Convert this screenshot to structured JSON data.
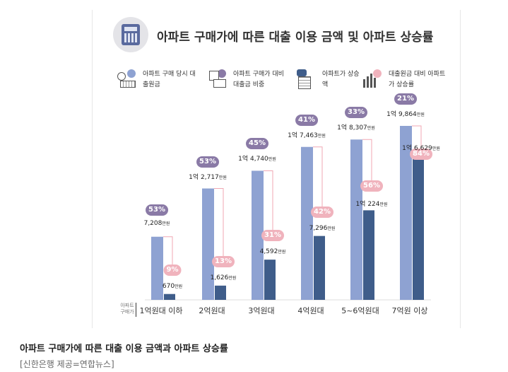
{
  "chart_data": {
    "type": "bar",
    "title": "아파트 구매가에 따른 대출 이용 금액 및 아파트 상승률",
    "axis_title": "아파트 구매가",
    "legend": [
      "아파트 구매 당시 대출원금",
      "아파트 구매가 대비 대출금 비중",
      "아파트가 상승액",
      "대출원금 대비 아파트가 상승률"
    ],
    "categories": [
      "1억원대 이하",
      "2억원대",
      "3억원대",
      "4억원대",
      "5~6억원대",
      "7억원 이상"
    ],
    "series": [
      {
        "name": "아파트 구매 당시 대출원금",
        "values": [
          7208,
          12717,
          14740,
          17463,
          18307,
          19864
        ],
        "labels": [
          "7,208",
          "1억 2,717",
          "1억 4,740",
          "1억 7,463",
          "1억 8,307",
          "1억 9,864"
        ],
        "pct": [
          "53%",
          "53%",
          "45%",
          "41%",
          "33%",
          "21%"
        ]
      },
      {
        "name": "아파트가 상승액",
        "values": [
          670,
          1626,
          4592,
          7296,
          10224,
          16629
        ],
        "labels": [
          "670",
          "1,626",
          "4,592",
          "7,296",
          "1억 224",
          "1억 6,629"
        ],
        "pct": [
          "9%",
          "13%",
          "31%",
          "42%",
          "56%",
          "84%"
        ]
      }
    ],
    "unit": "만원",
    "ylim": [
      0,
      21000
    ],
    "colors": {
      "loan": "#8ea2d2",
      "rise": "#3f5d8a",
      "purple_badge": "#8a7aa6",
      "pink_badge": "#f0b3bd",
      "pink_line": "#f0a7b3"
    }
  },
  "caption": "아파트 구매가에 따른 대출 이용 금액과 아파트 상승률",
  "credit": "[신한은행 제공=연합뉴스]"
}
